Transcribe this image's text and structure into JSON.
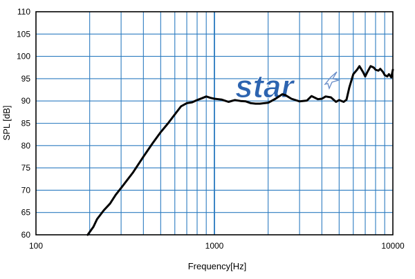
{
  "chart_data": {
    "type": "line",
    "title": "",
    "xlabel": "Frequency[Hz]",
    "ylabel": "SPL [dB]",
    "xscale": "log",
    "xlim": [
      100,
      10000
    ],
    "ylim": [
      60,
      110
    ],
    "grid": true,
    "x_ticks": [
      100,
      1000,
      10000
    ],
    "x_tick_labels": [
      "100",
      "1000",
      "10000"
    ],
    "y_ticks": [
      60,
      65,
      70,
      75,
      80,
      85,
      90,
      95,
      100,
      105,
      110
    ],
    "y_tick_labels": [
      "60",
      "65",
      "70",
      "75",
      "80",
      "85",
      "90",
      "95",
      "100",
      "105",
      "110"
    ],
    "series": [
      {
        "x": [
          195,
          210,
          220,
          240,
          260,
          280,
          300,
          350,
          400,
          450,
          500,
          550,
          600,
          650,
          700,
          750,
          800,
          850,
          900,
          950,
          1000,
          1100,
          1200,
          1300,
          1400,
          1500,
          1600,
          1700,
          1800,
          2000,
          2200,
          2400,
          2500,
          2700,
          3000,
          3300,
          3500,
          3800,
          4000,
          4200,
          4500,
          4800,
          5000,
          5300,
          5500,
          5700,
          6000,
          6300,
          6500,
          6800,
          7000,
          7200,
          7500,
          7800,
          8000,
          8300,
          8500,
          8800,
          9000,
          9300,
          9500,
          9800,
          10000
        ],
        "y": [
          60,
          61.8,
          63.5,
          65.5,
          67,
          69,
          70.5,
          74,
          77.5,
          80.5,
          83,
          85,
          87,
          88.8,
          89.5,
          89.7,
          90.2,
          90.6,
          91,
          90.7,
          90.5,
          90.3,
          89.8,
          90.2,
          90,
          89.9,
          89.5,
          89.4,
          89.4,
          89.6,
          90.5,
          91.5,
          91.3,
          90.5,
          89.9,
          90.1,
          91.1,
          90.4,
          90.5,
          91,
          90.8,
          89.8,
          90.2,
          89.8,
          90.3,
          93,
          96,
          97,
          97.8,
          96.5,
          95.5,
          96.5,
          97.8,
          97.5,
          97,
          96.8,
          97.2,
          96.5,
          95.8,
          95.5,
          96,
          95.3,
          97
        ]
      }
    ]
  },
  "logo": {
    "text": "star"
  }
}
